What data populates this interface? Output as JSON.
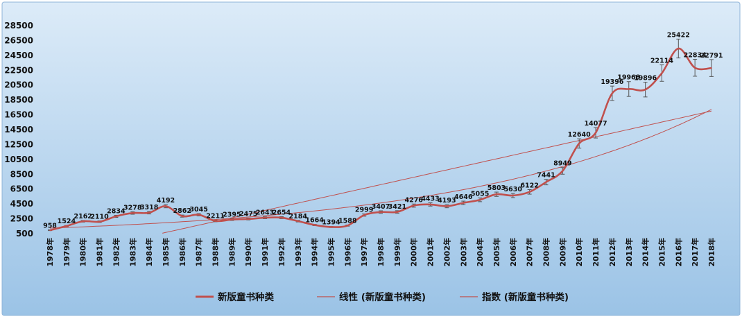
{
  "chart_data": {
    "type": "line",
    "title": "",
    "xlabel": "",
    "ylabel": "",
    "ylim": [
      500,
      28500
    ],
    "yticks": [
      500,
      2500,
      4500,
      6500,
      8500,
      10500,
      12500,
      14500,
      16500,
      18500,
      20500,
      22500,
      24500,
      26500,
      28500
    ],
    "categories": [
      "1978年",
      "1979年",
      "1980年",
      "1981年",
      "1982年",
      "1983年",
      "1984年",
      "1985年",
      "1986年",
      "1987年",
      "1988年",
      "1989年",
      "1990年",
      "1991年",
      "1992年",
      "1993年",
      "1994年",
      "1995年",
      "1996年",
      "1997年",
      "1998年",
      "1999年",
      "2000年",
      "2001年",
      "2002年",
      "2003年",
      "2004年",
      "2005年",
      "2006年",
      "2007年",
      "2008年",
      "2009年",
      "2010年",
      "2011年",
      "2012年",
      "2013年",
      "2014年",
      "2015年",
      "2016年",
      "2017年",
      "2018年"
    ],
    "series": [
      {
        "name": "新版童书种类",
        "kind": "smooth-line",
        "color": "#c0504d",
        "values": [
          958,
          1524,
          2162,
          2110,
          2834,
          3278,
          3318,
          4192,
          2862,
          3045,
          2211,
          2395,
          2475,
          2643,
          2654,
          2184,
          1664,
          1394,
          1588,
          2999,
          3407,
          3421,
          4276,
          4433,
          4193,
          4646,
          5055,
          5803,
          5630,
          6122,
          7441,
          8949,
          12640,
          14077,
          19396,
          19968,
          19896,
          22114,
          25422,
          22834,
          22791
        ],
        "data_labels": [
          "958",
          "1524",
          "2162",
          "2110",
          "2834",
          "3278",
          "3318",
          "4192",
          "2862",
          "3045",
          "2211",
          "2395",
          "2475",
          "2643",
          "2654",
          "2184",
          "1664",
          "1394",
          "1588",
          "2999",
          "3407",
          "3421",
          "4276",
          "4433",
          "4193",
          "4646",
          "5055",
          "5803",
          "5630",
          "6122",
          "7441",
          "8949",
          "12640",
          "14077",
          "19396",
          "19968",
          "19896",
          "22114",
          "25422",
          "22834",
          "22791"
        ],
        "error_bars": true
      },
      {
        "name": "线性 (新版童书种类)",
        "kind": "linear-trendline",
        "color": "#c0504d"
      },
      {
        "name": "指数 (新版童书种类)",
        "kind": "exponential-trendline",
        "color": "#c0504d"
      }
    ],
    "grid": false,
    "legend_placement": "bottom"
  },
  "legend": [
    {
      "label": "新版童书种类",
      "style": "thick"
    },
    {
      "label": "线性 (新版童书种类)",
      "style": "thin"
    },
    {
      "label": "指数 (新版童书种类)",
      "style": "thin"
    }
  ],
  "colors": {
    "series": "#c0504d",
    "error_bar": "#555555",
    "background_top": "#dcebf8",
    "background_bottom": "#9bc3e6"
  }
}
